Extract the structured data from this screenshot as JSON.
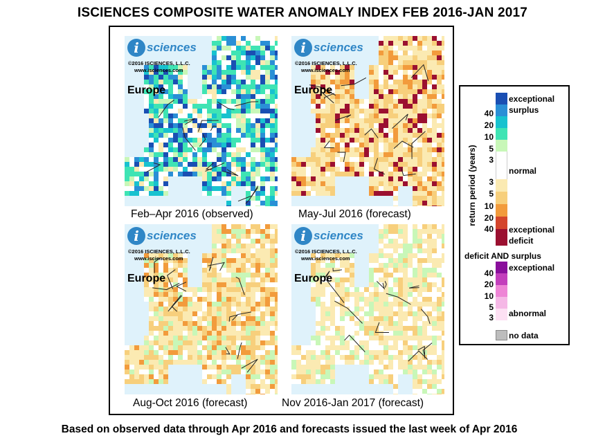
{
  "title": "ISCIENCES COMPOSITE WATER ANOMALY INDEX FEB 2016-JAN 2017",
  "footer": "Based on observed data through Apr 2016 and forecasts issued the last week of Apr 2016",
  "logo": {
    "letter": "i",
    "word": "sciences",
    "copyright": "©2016  ISCIENCES, L.L.C.",
    "url": "www.isciences.com"
  },
  "panels": [
    {
      "caption": "Feb–Apr 2016 (observed)",
      "region": "Europe"
    },
    {
      "caption": "May-Jul 2016 (forecast)",
      "region": "Europe"
    },
    {
      "caption": "Aug-Oct 2016 (forecast)",
      "region": "Europe"
    },
    {
      "caption": "Nov 2016-Jan 2017 (forecast)",
      "region": "Europe"
    }
  ],
  "legend": {
    "axis_label": "return period (years)",
    "surplus_label_1": "exceptional",
    "surplus_label_2": "surplus",
    "normal_label": "normal",
    "deficit_label_1": "exceptional",
    "deficit_label_2": "deficit",
    "both_heading": "deficit AND surplus",
    "both_exceptional": "exceptional",
    "both_abnormal": "abnormal",
    "nodata_label": "no data",
    "surplus_ticks": [
      "40",
      "20",
      "10",
      "5",
      "3"
    ],
    "deficit_ticks": [
      "3",
      "5",
      "10",
      "20",
      "40"
    ],
    "both_ticks": [
      "40",
      "20",
      "10",
      "5",
      "3"
    ],
    "colors": {
      "surplus": [
        "#1a4fb3",
        "#2a8fd6",
        "#18c2cf",
        "#3fe4b4",
        "#c8f7b8"
      ],
      "normal": "#ffffff",
      "deficit": [
        "#fbeab2",
        "#f7cf7c",
        "#f29b3c",
        "#d4452c",
        "#9b1030"
      ],
      "both": [
        "#8a0f9c",
        "#c33fbc",
        "#ee85d6",
        "#f5b8e6",
        "#fde0f3"
      ],
      "nodata": "#bdbdbd",
      "water": "#dff2fb"
    }
  }
}
